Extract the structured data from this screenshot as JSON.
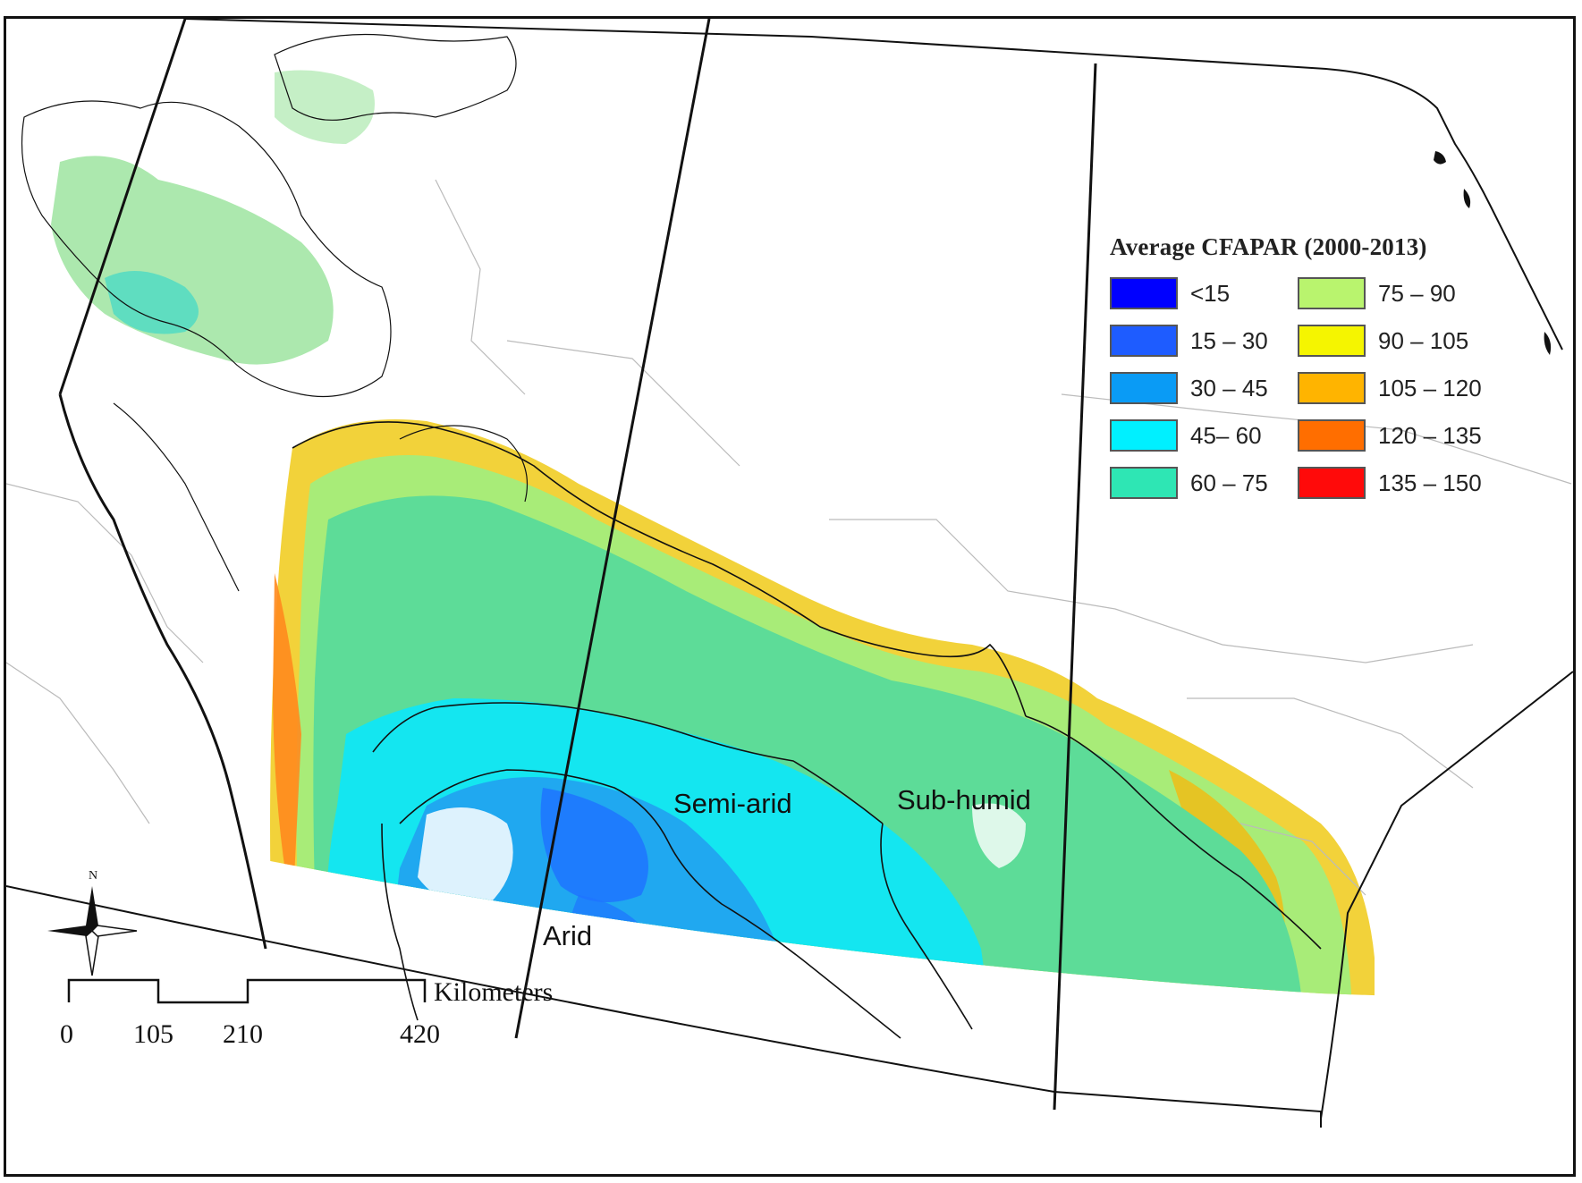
{
  "legend": {
    "title": "Average CFAPAR (2000-2013)",
    "classes": [
      {
        "label": "<15",
        "color": "#0000ff"
      },
      {
        "label": "15 – 30",
        "color": "#1e5cff"
      },
      {
        "label": "30 – 45",
        "color": "#0a9bf5"
      },
      {
        "label": "45– 60",
        "color": "#00f0ff"
      },
      {
        "label": "60 – 75",
        "color": "#2ee6b4"
      },
      {
        "label": "75 – 90",
        "color": "#b9f46e"
      },
      {
        "label": "90 – 105",
        "color": "#f5f500"
      },
      {
        "label": "105 – 120",
        "color": "#ffb400"
      },
      {
        "label": "120 – 135",
        "color": "#ff6e00"
      },
      {
        "label": "135 – 150",
        "color": "#ff0a0a"
      }
    ]
  },
  "zones": {
    "arid": "Arid",
    "semi_arid": "Semi-arid",
    "sub_humid": "Sub-humid"
  },
  "scale_bar": {
    "unit": "Kilometers",
    "ticks": [
      "0",
      "105",
      "210",
      "420"
    ]
  },
  "north_arrow": {
    "label": "N"
  }
}
